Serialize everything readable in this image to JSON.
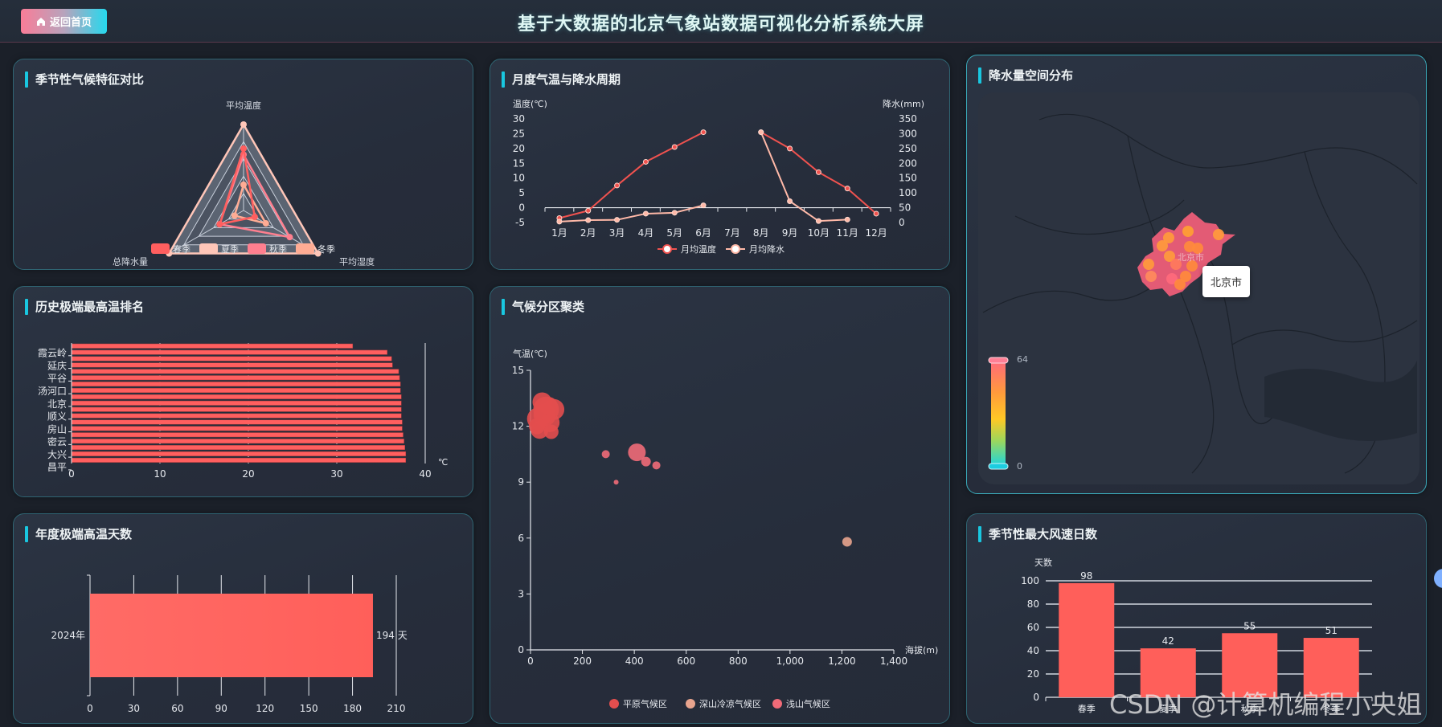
{
  "header": {
    "home_button": "返回首页",
    "title": "基于大数据的北京气象站数据可视化分析系统大屏"
  },
  "panels": {
    "radar": {
      "title": "季节性气候特征对比"
    },
    "monthly": {
      "title": "月度气温与降水周期"
    },
    "map": {
      "title": "降水量空间分布"
    },
    "extreme_rank": {
      "title": "历史极端最高温排名"
    },
    "cluster": {
      "title": "气候分区聚类"
    },
    "hot_days": {
      "title": "年度极端高温天数"
    },
    "wind": {
      "title": "季节性最大风速日数"
    }
  },
  "map": {
    "tooltip": "北京市",
    "region_label": "北京市",
    "visual_map": {
      "max": "64",
      "min": "0"
    }
  },
  "watermark": "CSDN @计算机编程小央姐",
  "chart_data": [
    {
      "id": "radar",
      "type": "radar",
      "title": "季节性气候特征对比",
      "indicators": [
        "平均温度",
        "平均湿度",
        "总降水量"
      ],
      "legend": [
        "春季",
        "夏季",
        "秋季",
        "冬季"
      ],
      "legend_colors": [
        "#ff5f5f",
        "#ffc6b8",
        "#ff7f8f",
        "#ffac94"
      ],
      "series": [
        {
          "name": "春季",
          "values": [
            0.72,
            0.15,
            0.32
          ]
        },
        {
          "name": "夏季",
          "values": [
            1.0,
            1.0,
            1.0
          ]
        },
        {
          "name": "秋季",
          "values": [
            0.65,
            0.62,
            0.32
          ]
        },
        {
          "name": "冬季",
          "values": [
            0.3,
            0.3,
            0.12
          ]
        }
      ]
    },
    {
      "id": "monthly",
      "type": "line",
      "title": "月度气温与降水周期",
      "categories": [
        "1月",
        "2月",
        "3月",
        "4月",
        "5月",
        "6月",
        "7月",
        "8月",
        "9月",
        "10月",
        "11月",
        "12月"
      ],
      "ylabel_left": "温度(℃)",
      "ylabel_right": "降水(mm)",
      "yleft_ticks": [
        30,
        25,
        20,
        15,
        10,
        5,
        0,
        -5
      ],
      "yright_ticks": [
        350,
        300,
        250,
        200,
        150,
        100,
        50,
        0
      ],
      "ylim_left": [
        -5,
        30
      ],
      "ylim_right": [
        0,
        350
      ],
      "legend": [
        "月均温度",
        "月均降水"
      ],
      "series": [
        {
          "name": "月均温度",
          "axis": "left",
          "color": "#f0524f",
          "values": [
            -3.5,
            -1,
            7.5,
            15.5,
            20.5,
            25.5,
            null,
            25.5,
            20,
            12,
            6.5,
            -2
          ]
        },
        {
          "name": "月均降水",
          "axis": "right",
          "color": "#ffb9a8",
          "values": [
            3,
            8,
            9,
            30,
            33,
            58,
            null,
            305,
            72,
            5,
            10,
            null
          ]
        }
      ]
    },
    {
      "id": "extreme_rank",
      "type": "bar",
      "orientation": "horizontal",
      "title": "历史极端最高温排名",
      "xlabel": "℃",
      "xlim": [
        0,
        40
      ],
      "xticks": [
        0,
        10,
        20,
        30,
        40
      ],
      "category_labels_visible": [
        "霞云岭",
        "延庆",
        "平谷",
        "汤河口",
        "北京",
        "顺义",
        "房山",
        "密云",
        "大兴",
        "昌平"
      ],
      "values": [
        31.8,
        35.7,
        36.2,
        36.3,
        37.0,
        37.1,
        37.2,
        37.2,
        37.3,
        37.3,
        37.3,
        37.3,
        37.4,
        37.4,
        37.5,
        37.6,
        37.7,
        37.8,
        37.8
      ],
      "color": "#ff5f5f"
    },
    {
      "id": "cluster",
      "type": "scatter",
      "title": "气候分区聚类",
      "xlabel": "海拔(m)",
      "ylabel": "气温(℃)",
      "xlim": [
        0,
        1400
      ],
      "ylim": [
        0,
        15
      ],
      "xticks": [
        "0",
        "200",
        "400",
        "600",
        "800",
        "1,000",
        "1,200",
        "1,400"
      ],
      "yticks": [
        0,
        3,
        6,
        9,
        12,
        15
      ],
      "legend": [
        "平原气候区",
        "深山冷凉气候区",
        "浅山气候区"
      ],
      "legend_colors": [
        "#e34e4e",
        "#e8a48e",
        "#f06b78"
      ],
      "series": [
        {
          "name": "平原气候区",
          "points": [
            [
              30,
              12.4,
              14
            ],
            [
              45,
              13.3,
              12
            ],
            [
              60,
              12.9,
              16
            ],
            [
              75,
              12.2,
              12
            ],
            [
              35,
              11.8,
              11
            ],
            [
              90,
              12.9,
              13
            ],
            [
              80,
              11.7,
              9
            ],
            [
              55,
              12.6,
              14
            ],
            [
              25,
              12.0,
              10
            ],
            [
              70,
              13.1,
              11
            ]
          ]
        },
        {
          "name": "深山冷凉气候区",
          "points": [
            [
              1220,
              5.8,
              6
            ]
          ]
        },
        {
          "name": "浅山气候区",
          "points": [
            [
              290,
              10.5,
              5
            ],
            [
              410,
              10.6,
              11
            ],
            [
              445,
              10.1,
              6
            ],
            [
              485,
              9.9,
              5
            ],
            [
              330,
              9.0,
              3
            ]
          ]
        }
      ]
    },
    {
      "id": "hot_days",
      "type": "bar",
      "orientation": "horizontal",
      "title": "年度极端高温天数",
      "categories": [
        "2024年"
      ],
      "values": [
        194
      ],
      "value_label": "194 天",
      "xlim": [
        0,
        210
      ],
      "xticks": [
        0,
        30,
        60,
        90,
        120,
        150,
        180,
        210
      ]
    },
    {
      "id": "wind",
      "type": "bar",
      "title": "季节性最大风速日数",
      "ylabel": "天数",
      "categories": [
        "春季",
        "夏季",
        "秋季",
        "冬季"
      ],
      "values": [
        98,
        42,
        55,
        51
      ],
      "ylim": [
        0,
        100
      ],
      "yticks": [
        0,
        20,
        40,
        60,
        80,
        100
      ]
    }
  ]
}
